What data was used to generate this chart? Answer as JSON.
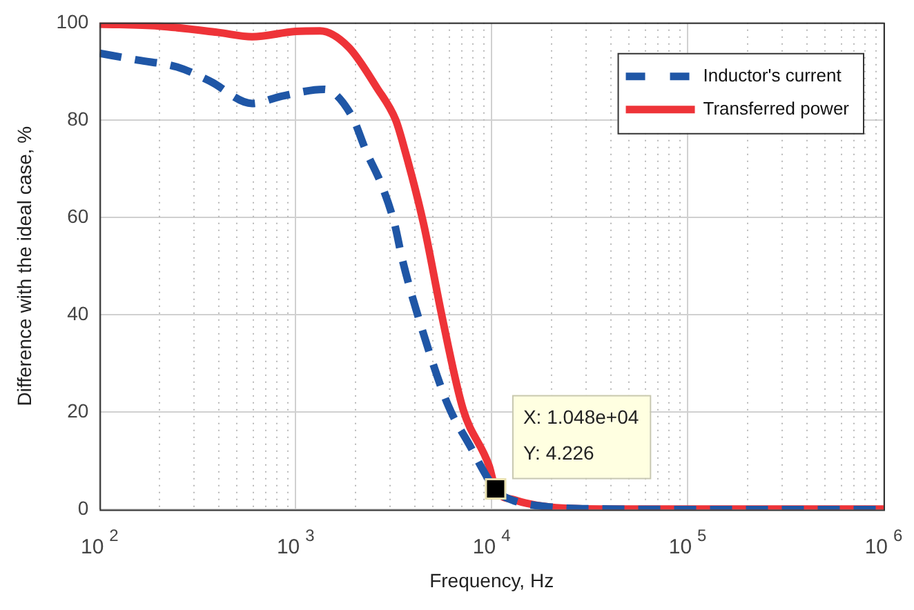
{
  "chart_data": {
    "type": "line",
    "xlabel": "Frequency, Hz",
    "ylabel": "Difference with the ideal case, %",
    "log": "x",
    "grid": true,
    "legend": "top right",
    "marker": "none",
    "xlim": [
      100,
      1000000
    ],
    "xticks": [
      {
        "value": 100,
        "label": "10$^{2}$"
      },
      {
        "value": 1000,
        "label": "10$^{3}$"
      },
      {
        "value": 10000,
        "label": "10$^{4}$"
      },
      {
        "value": 100000,
        "label": "10$^{5}$"
      },
      {
        "value": 1000000,
        "label": "10$^{6}$"
      }
    ],
    "ylim": [
      0,
      100
    ],
    "yticks": [
      0,
      20,
      40,
      60,
      80,
      100
    ],
    "series": [
      {
        "name": "Inductor's current",
        "color": "#1f56a6",
        "line_style": "dashed",
        "x": [
          100,
          157,
          248,
          365,
          600,
          850,
          1400,
          1930,
          2300,
          2750,
          3200,
          3500,
          4450,
          6000,
          7800,
          9600,
          10800,
          13000,
          19000,
          40000,
          100000,
          1000000
        ],
        "values": [
          93.7,
          92.3,
          90.9,
          88,
          83.4,
          84.9,
          86.3,
          80.9,
          73.4,
          66.6,
          58.6,
          51.4,
          36.6,
          21.4,
          12.9,
          6.3,
          3.5,
          1.8,
          0.6,
          0.1,
          0,
          0
        ]
      },
      {
        "name": "Transferred power",
        "color": "#ee3338",
        "line_style": "solid",
        "x": [
          100,
          200,
          400,
          600,
          1000,
          1330,
          1860,
          2600,
          3240,
          3500,
          4500,
          5600,
          7150,
          9700,
          10480,
          13000,
          20000,
          40000,
          100000,
          1000000
        ],
        "values": [
          99.7,
          99.3,
          98,
          97.1,
          98.2,
          98.3,
          95,
          86.6,
          80,
          75.7,
          58.6,
          39.4,
          20.6,
          9,
          4.226,
          2,
          0.5,
          0.1,
          0.1,
          0.1
        ]
      }
    ],
    "annotations": [
      {
        "text": "X: 1.048e+04\nY: 4.226",
        "x": 10480,
        "y": 4.226
      }
    ]
  }
}
